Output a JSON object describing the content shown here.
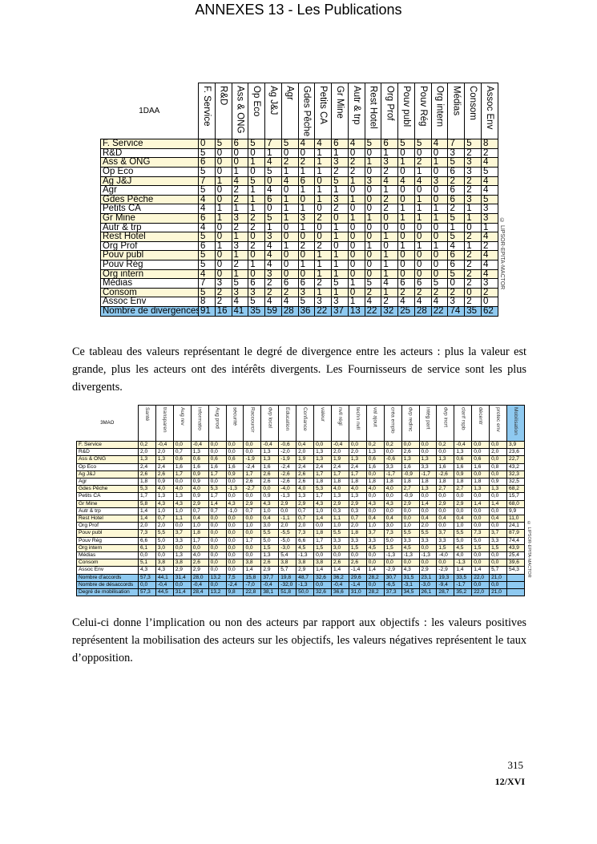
{
  "page_title": "ANNEXES 13 - Les Publications",
  "table1": {
    "corner": "1DAA",
    "watermark": "© LIPSOR-EPITA-MACTOR",
    "columns": [
      "F. Service",
      "R&D",
      "Ass & ONG",
      "Op Eco",
      "Ag J&J",
      "Agr",
      "Gdes Pêche",
      "Petits CA",
      "Gr Mine",
      "Autr & trp",
      "Rest Hotel",
      "Org Prof",
      "Pouv publ",
      "Pouv Rég",
      "Org intern",
      "Médias",
      "Consom",
      "Assoc Env"
    ],
    "rows": [
      {
        "label": "F. Service",
        "values": [
          "0",
          "5",
          "6",
          "5",
          "7",
          "5",
          "4",
          "4",
          "6",
          "4",
          "5",
          "6",
          "5",
          "5",
          "4",
          "7",
          "5",
          "8"
        ]
      },
      {
        "label": "R&D",
        "values": [
          "5",
          "0",
          "0",
          "0",
          "1",
          "0",
          "0",
          "1",
          "1",
          "0",
          "0",
          "1",
          "0",
          "0",
          "0",
          "3",
          "2",
          "2"
        ]
      },
      {
        "label": "Ass & ONG",
        "values": [
          "6",
          "0",
          "0",
          "1",
          "4",
          "2",
          "2",
          "1",
          "3",
          "2",
          "1",
          "3",
          "1",
          "2",
          "1",
          "5",
          "3",
          "4"
        ]
      },
      {
        "label": "Op Eco",
        "values": [
          "5",
          "0",
          "1",
          "0",
          "5",
          "1",
          "1",
          "1",
          "2",
          "2",
          "0",
          "2",
          "0",
          "1",
          "0",
          "6",
          "3",
          "5"
        ]
      },
      {
        "label": "Ag J&J",
        "values": [
          "7",
          "1",
          "4",
          "5",
          "0",
          "4",
          "6",
          "0",
          "5",
          "1",
          "3",
          "4",
          "4",
          "4",
          "3",
          "2",
          "2",
          "4"
        ]
      },
      {
        "label": "Agr",
        "values": [
          "5",
          "0",
          "2",
          "1",
          "4",
          "0",
          "1",
          "1",
          "1",
          "0",
          "0",
          "1",
          "0",
          "0",
          "0",
          "6",
          "2",
          "4"
        ]
      },
      {
        "label": "Gdes Pêche",
        "values": [
          "4",
          "0",
          "2",
          "1",
          "6",
          "1",
          "0",
          "1",
          "3",
          "1",
          "0",
          "2",
          "0",
          "1",
          "0",
          "6",
          "3",
          "5"
        ]
      },
      {
        "label": "Petits CA",
        "values": [
          "4",
          "1",
          "1",
          "1",
          "0",
          "1",
          "1",
          "0",
          "2",
          "0",
          "0",
          "2",
          "1",
          "1",
          "1",
          "2",
          "1",
          "3"
        ]
      },
      {
        "label": "Gr Mine",
        "values": [
          "6",
          "1",
          "3",
          "2",
          "5",
          "1",
          "3",
          "2",
          "0",
          "1",
          "1",
          "0",
          "1",
          "1",
          "1",
          "5",
          "1",
          "3"
        ]
      },
      {
        "label": "Autr & trp",
        "values": [
          "4",
          "0",
          "2",
          "2",
          "1",
          "0",
          "1",
          "0",
          "1",
          "0",
          "0",
          "0",
          "0",
          "0",
          "0",
          "1",
          "0",
          "1"
        ]
      },
      {
        "label": "Rest Hotel",
        "values": [
          "5",
          "0",
          "1",
          "0",
          "3",
          "0",
          "0",
          "0",
          "1",
          "0",
          "0",
          "1",
          "0",
          "0",
          "0",
          "5",
          "2",
          "4"
        ]
      },
      {
        "label": "Org Prof",
        "values": [
          "6",
          "1",
          "3",
          "2",
          "4",
          "1",
          "2",
          "2",
          "0",
          "0",
          "1",
          "0",
          "1",
          "1",
          "1",
          "4",
          "1",
          "2"
        ]
      },
      {
        "label": "Pouv publ",
        "values": [
          "5",
          "0",
          "1",
          "0",
          "4",
          "0",
          "0",
          "1",
          "1",
          "0",
          "0",
          "1",
          "0",
          "0",
          "0",
          "6",
          "2",
          "4"
        ]
      },
      {
        "label": "Pouv Rég",
        "values": [
          "5",
          "0",
          "2",
          "1",
          "4",
          "0",
          "1",
          "1",
          "1",
          "0",
          "0",
          "1",
          "0",
          "0",
          "0",
          "6",
          "2",
          "4"
        ]
      },
      {
        "label": "Org intern",
        "values": [
          "4",
          "0",
          "1",
          "0",
          "3",
          "0",
          "0",
          "1",
          "1",
          "0",
          "0",
          "1",
          "0",
          "0",
          "0",
          "5",
          "2",
          "4"
        ]
      },
      {
        "label": "Médias",
        "values": [
          "7",
          "3",
          "5",
          "6",
          "2",
          "6",
          "6",
          "2",
          "5",
          "1",
          "5",
          "4",
          "6",
          "6",
          "5",
          "0",
          "2",
          "3"
        ]
      },
      {
        "label": "Consom",
        "values": [
          "5",
          "2",
          "3",
          "3",
          "2",
          "2",
          "3",
          "1",
          "1",
          "0",
          "2",
          "1",
          "2",
          "2",
          "2",
          "2",
          "0",
          "2"
        ]
      },
      {
        "label": "Assoc Env",
        "values": [
          "8",
          "2",
          "4",
          "5",
          "4",
          "4",
          "5",
          "3",
          "3",
          "1",
          "4",
          "2",
          "4",
          "4",
          "4",
          "3",
          "2",
          "0"
        ]
      }
    ],
    "summary_rows": [
      {
        "label": "Nombre de divergences",
        "values": [
          "91",
          "16",
          "41",
          "35",
          "59",
          "28",
          "36",
          "22",
          "37",
          "13",
          "22",
          "32",
          "25",
          "28",
          "22",
          "74",
          "35",
          "62"
        ]
      }
    ]
  },
  "paragraph1": "Ce tableau des valeurs représentant le degré de divergence entre les acteurs : plus la valeur est grande, plus les acteurs ont des intérêts divergents. Les Fournisseurs de service sont les plus divergents.",
  "table2": {
    "corner": "3MAO",
    "watermark": "© LIPSOR-EPITA-MACTOR",
    "columns": [
      "Santé",
      "transparen",
      "Aug rev",
      "informatio",
      "Aug prod",
      "sécurité",
      "Raccourcir",
      "dvp local",
      "Education",
      "Confiance",
      "valeur",
      "nvll régl",
      "techn nvll",
      "val ajout",
      "créa emplo",
      "dvp redinc",
      "intég part",
      "dvp incrt",
      "clarif rspb",
      "décentr",
      "protec env",
      "Mobilisation"
    ],
    "rows": [
      {
        "label": "F. Service",
        "values": [
          "0,2",
          "-0,4",
          "0,0",
          "-0,4",
          "0,0",
          "0,0",
          "0,0",
          "-0,4",
          "-0,6",
          "0,4",
          "0,0",
          "-0,4",
          "0,0",
          "0,2",
          "0,2",
          "0,0",
          "0,0",
          "0,2",
          "-0,4",
          "0,0",
          "0,0",
          "3,9"
        ]
      },
      {
        "label": "R&D",
        "values": [
          "2,0",
          "2,0",
          "0,7",
          "1,3",
          "0,0",
          "0,0",
          "0,0",
          "1,3",
          "-2,0",
          "2,0",
          "1,3",
          "2,0",
          "2,0",
          "1,3",
          "0,0",
          "2,6",
          "0,0",
          "0,0",
          "1,3",
          "0,0",
          "2,0",
          "23,6"
        ]
      },
      {
        "label": "Ass & ONG",
        "values": [
          "1,3",
          "1,3",
          "0,6",
          "0,6",
          "0,6",
          "0,6",
          "-1,9",
          "1,3",
          "-1,9",
          "1,9",
          "1,3",
          "1,9",
          "1,3",
          "0,6",
          "-0,6",
          "1,3",
          "1,3",
          "1,3",
          "0,6",
          "0,6",
          "0,0",
          "22,7"
        ]
      },
      {
        "label": "Op Eco",
        "values": [
          "2,4",
          "2,4",
          "1,6",
          "1,6",
          "1,6",
          "1,6",
          "-2,4",
          "1,6",
          "-2,4",
          "2,4",
          "2,4",
          "2,4",
          "2,4",
          "1,6",
          "3,3",
          "1,6",
          "3,3",
          "1,6",
          "1,6",
          "1,6",
          "0,8",
          "43,2"
        ]
      },
      {
        "label": "Ag J&J",
        "values": [
          "2,6",
          "2,6",
          "1,7",
          "0,9",
          "1,7",
          "0,9",
          "1,7",
          "2,6",
          "-2,6",
          "2,6",
          "1,7",
          "1,7",
          "1,7",
          "0,0",
          "-1,7",
          "-0,9",
          "-1,7",
          "-2,6",
          "0,9",
          "0,0",
          "0,0",
          "32,3"
        ]
      },
      {
        "label": "Agr",
        "values": [
          "1,8",
          "0,9",
          "0,0",
          "0,9",
          "0,0",
          "0,0",
          "2,6",
          "2,6",
          "-2,6",
          "2,6",
          "1,8",
          "1,8",
          "1,8",
          "1,8",
          "1,8",
          "1,8",
          "1,8",
          "1,8",
          "1,8",
          "1,8",
          "0,9",
          "32,5"
        ]
      },
      {
        "label": "Gdes Pêche",
        "values": [
          "5,3",
          "4,0",
          "4,0",
          "4,0",
          "5,3",
          "-1,3",
          "-2,7",
          "0,0",
          "-4,0",
          "4,0",
          "5,3",
          "4,0",
          "4,0",
          "4,0",
          "4,0",
          "2,7",
          "1,3",
          "2,7",
          "2,7",
          "1,3",
          "1,3",
          "68,2"
        ]
      },
      {
        "label": "Petits CA",
        "values": [
          "1,7",
          "1,3",
          "1,3",
          "0,9",
          "1,7",
          "0,0",
          "0,0",
          "0,9",
          "-1,3",
          "1,3",
          "1,7",
          "1,3",
          "1,3",
          "0,0",
          "0,0",
          "-0,9",
          "0,0",
          "0,0",
          "0,0",
          "0,0",
          "0,0",
          "15,7"
        ]
      },
      {
        "label": "Gr Mine",
        "values": [
          "5,8",
          "4,3",
          "4,3",
          "2,9",
          "1,4",
          "4,3",
          "2,9",
          "4,3",
          "2,9",
          "2,9",
          "4,3",
          "2,9",
          "2,9",
          "4,3",
          "4,3",
          "2,9",
          "1,4",
          "2,9",
          "2,9",
          "1,4",
          "1,4",
          "68,0"
        ]
      },
      {
        "label": "Autr & trp",
        "values": [
          "1,4",
          "1,0",
          "1,0",
          "0,7",
          "0,7",
          "-1,0",
          "0,7",
          "1,0",
          "0,0",
          "0,7",
          "1,0",
          "0,3",
          "0,3",
          "0,0",
          "0,0",
          "0,0",
          "0,0",
          "0,0",
          "0,0",
          "0,0",
          "0,0",
          "9,9"
        ]
      },
      {
        "label": "Rest Hotel",
        "values": [
          "1,4",
          "0,7",
          "1,1",
          "0,4",
          "0,0",
          "0,0",
          "0,0",
          "0,4",
          "-1,1",
          "0,7",
          "1,4",
          "1,1",
          "0,7",
          "0,4",
          "0,4",
          "0,0",
          "0,4",
          "0,4",
          "0,4",
          "0,0",
          "0,4",
          "11,0"
        ]
      },
      {
        "label": "Org Prof",
        "values": [
          "2,0",
          "2,0",
          "0,0",
          "1,0",
          "0,0",
          "0,0",
          "1,0",
          "3,0",
          "2,0",
          "2,0",
          "0,0",
          "1,0",
          "2,0",
          "1,0",
          "3,0",
          "1,0",
          "2,0",
          "0,0",
          "1,0",
          "0,0",
          "0,0",
          "24,1"
        ]
      },
      {
        "label": "Pouv publ",
        "values": [
          "7,3",
          "5,5",
          "3,7",
          "1,8",
          "0,0",
          "0,0",
          "0,0",
          "5,5",
          "-5,5",
          "7,3",
          "1,8",
          "5,5",
          "1,8",
          "3,7",
          "7,3",
          "5,5",
          "5,5",
          "3,7",
          "5,5",
          "7,3",
          "3,7",
          "87,9"
        ]
      },
      {
        "label": "Pouv Rég",
        "values": [
          "6,6",
          "5,0",
          "3,3",
          "1,7",
          "0,0",
          "0,0",
          "1,7",
          "5,0",
          "-5,0",
          "6,6",
          "1,7",
          "3,3",
          "3,3",
          "3,3",
          "5,0",
          "3,3",
          "3,3",
          "3,3",
          "5,0",
          "5,0",
          "3,3",
          "74,4"
        ]
      },
      {
        "label": "Org intern",
        "values": [
          "6,1",
          "3,0",
          "0,0",
          "0,0",
          "0,0",
          "0,0",
          "0,0",
          "1,5",
          "-3,0",
          "4,5",
          "1,5",
          "3,0",
          "1,5",
          "4,5",
          "1,5",
          "4,5",
          "0,0",
          "1,5",
          "4,5",
          "1,5",
          "1,5",
          "43,9"
        ]
      },
      {
        "label": "Médias",
        "values": [
          "0,0",
          "0,0",
          "1,3",
          "4,0",
          "0,0",
          "0,0",
          "0,0",
          "1,3",
          "5,4",
          "-1,3",
          "0,0",
          "0,0",
          "0,0",
          "0,0",
          "-1,3",
          "-1,3",
          "-1,3",
          "-4,0",
          "4,0",
          "0,0",
          "0,0",
          "25,4"
        ]
      },
      {
        "label": "Consom",
        "values": [
          "5,1",
          "3,8",
          "3,8",
          "2,6",
          "0,0",
          "0,0",
          "3,8",
          "2,6",
          "3,8",
          "3,8",
          "3,8",
          "2,6",
          "2,6",
          "0,0",
          "0,0",
          "0,0",
          "0,0",
          "0,0",
          "-1,3",
          "0,0",
          "0,0",
          "39,6"
        ]
      },
      {
        "label": "Assoc Env",
        "values": [
          "4,3",
          "4,3",
          "2,9",
          "2,9",
          "0,0",
          "0,0",
          "1,4",
          "2,9",
          "5,7",
          "2,9",
          "1,4",
          "1,4",
          "-1,4",
          "1,4",
          "-2,9",
          "4,3",
          "2,9",
          "-2,9",
          "1,4",
          "1,4",
          "5,7",
          "54,3"
        ]
      }
    ],
    "summary_rows": [
      {
        "label": "Nombre d'accords",
        "values": [
          "57,3",
          "44,1",
          "31,4",
          "28,0",
          "13,2",
          "7,5",
          "15,8",
          "37,7",
          "19,8",
          "48,7",
          "32,6",
          "36,2",
          "29,6",
          "28,2",
          "30,7",
          "31,5",
          "23,1",
          "19,3",
          "33,5",
          "22,0",
          "21,0",
          ""
        ]
      },
      {
        "label": "Nombre de désaccords",
        "values": [
          "0,0",
          "-0,4",
          "0,0",
          "-0,4",
          "0,0",
          "-2,4",
          "-7,0",
          "-0,4",
          "-32,0",
          "-1,3",
          "0,0",
          "-0,4",
          "-1,4",
          "0,0",
          "-6,5",
          "-3,1",
          "-3,0",
          "-9,4",
          "-1,7",
          "0,0",
          "0,0",
          ""
        ]
      },
      {
        "label": "Degré de mobilisation",
        "values": [
          "57,3",
          "44,5",
          "31,4",
          "28,4",
          "13,2",
          "9,8",
          "22,8",
          "38,1",
          "51,8",
          "50,0",
          "32,6",
          "36,6",
          "31,0",
          "28,2",
          "37,3",
          "34,5",
          "26,1",
          "28,7",
          "35,2",
          "22,0",
          "21,0",
          ""
        ]
      }
    ]
  },
  "paragraph2": "Celui-ci donne l’implication ou non des acteurs par rapport aux objectifs : les valeurs positives représentent la mobilisation des acteurs sur les objectifs, les valeurs négatives représentent le taux d’opposition.",
  "footer": {
    "page_number": "315",
    "page_code": "12/XVI"
  },
  "colors": {
    "highlight_row": "#fdf8d6",
    "summary_row": "#8ec9f0"
  }
}
